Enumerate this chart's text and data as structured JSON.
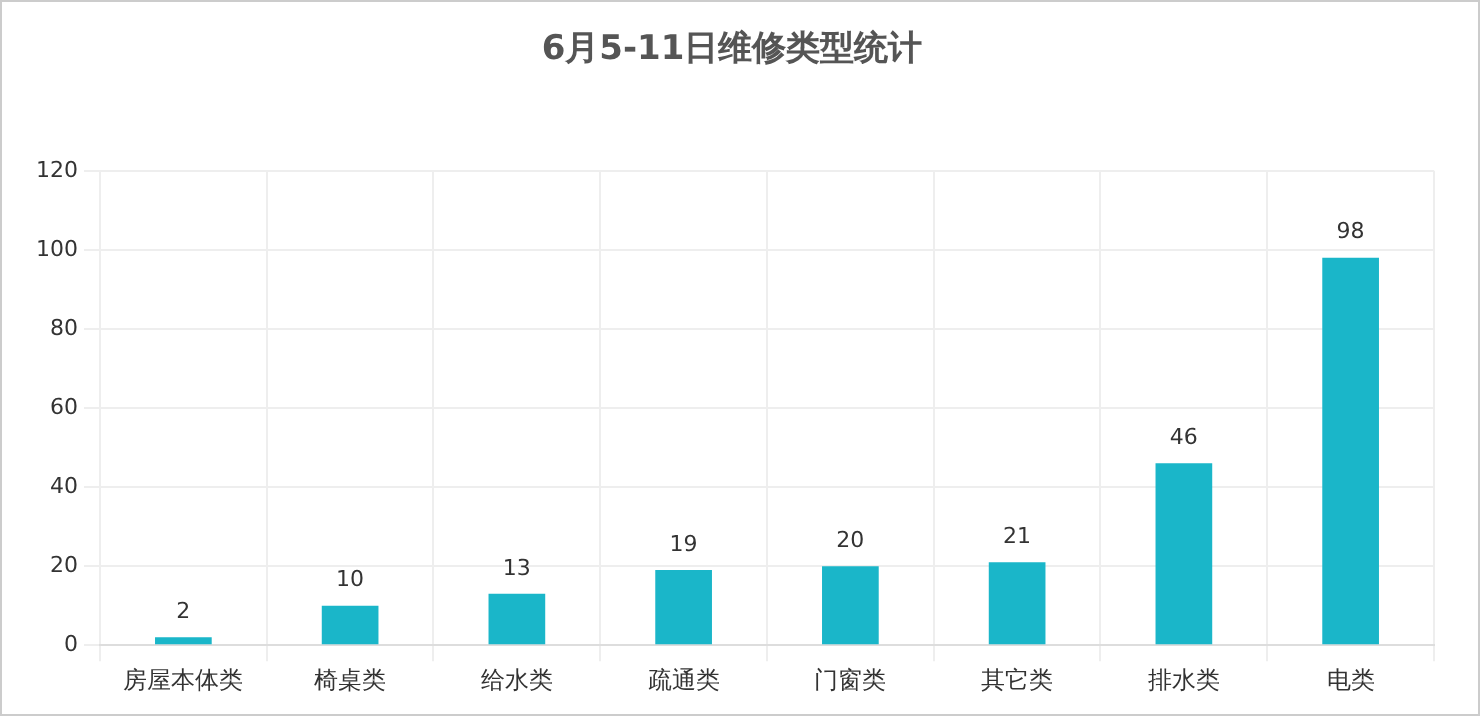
{
  "chart_data": {
    "type": "bar",
    "title": "6月5-11日维修类型统计",
    "categories": [
      "房屋本体类",
      "椅桌类",
      "给水类",
      "疏通类",
      "门窗类",
      "其它类",
      "排水类",
      "电类"
    ],
    "values": [
      2,
      10,
      13,
      19,
      20,
      21,
      46,
      98
    ],
    "color": "#1ab6c9",
    "ylim": [
      0,
      120
    ],
    "yticks": [
      0,
      20,
      40,
      60,
      80,
      100,
      120
    ],
    "grid": true,
    "data_labels": true
  }
}
